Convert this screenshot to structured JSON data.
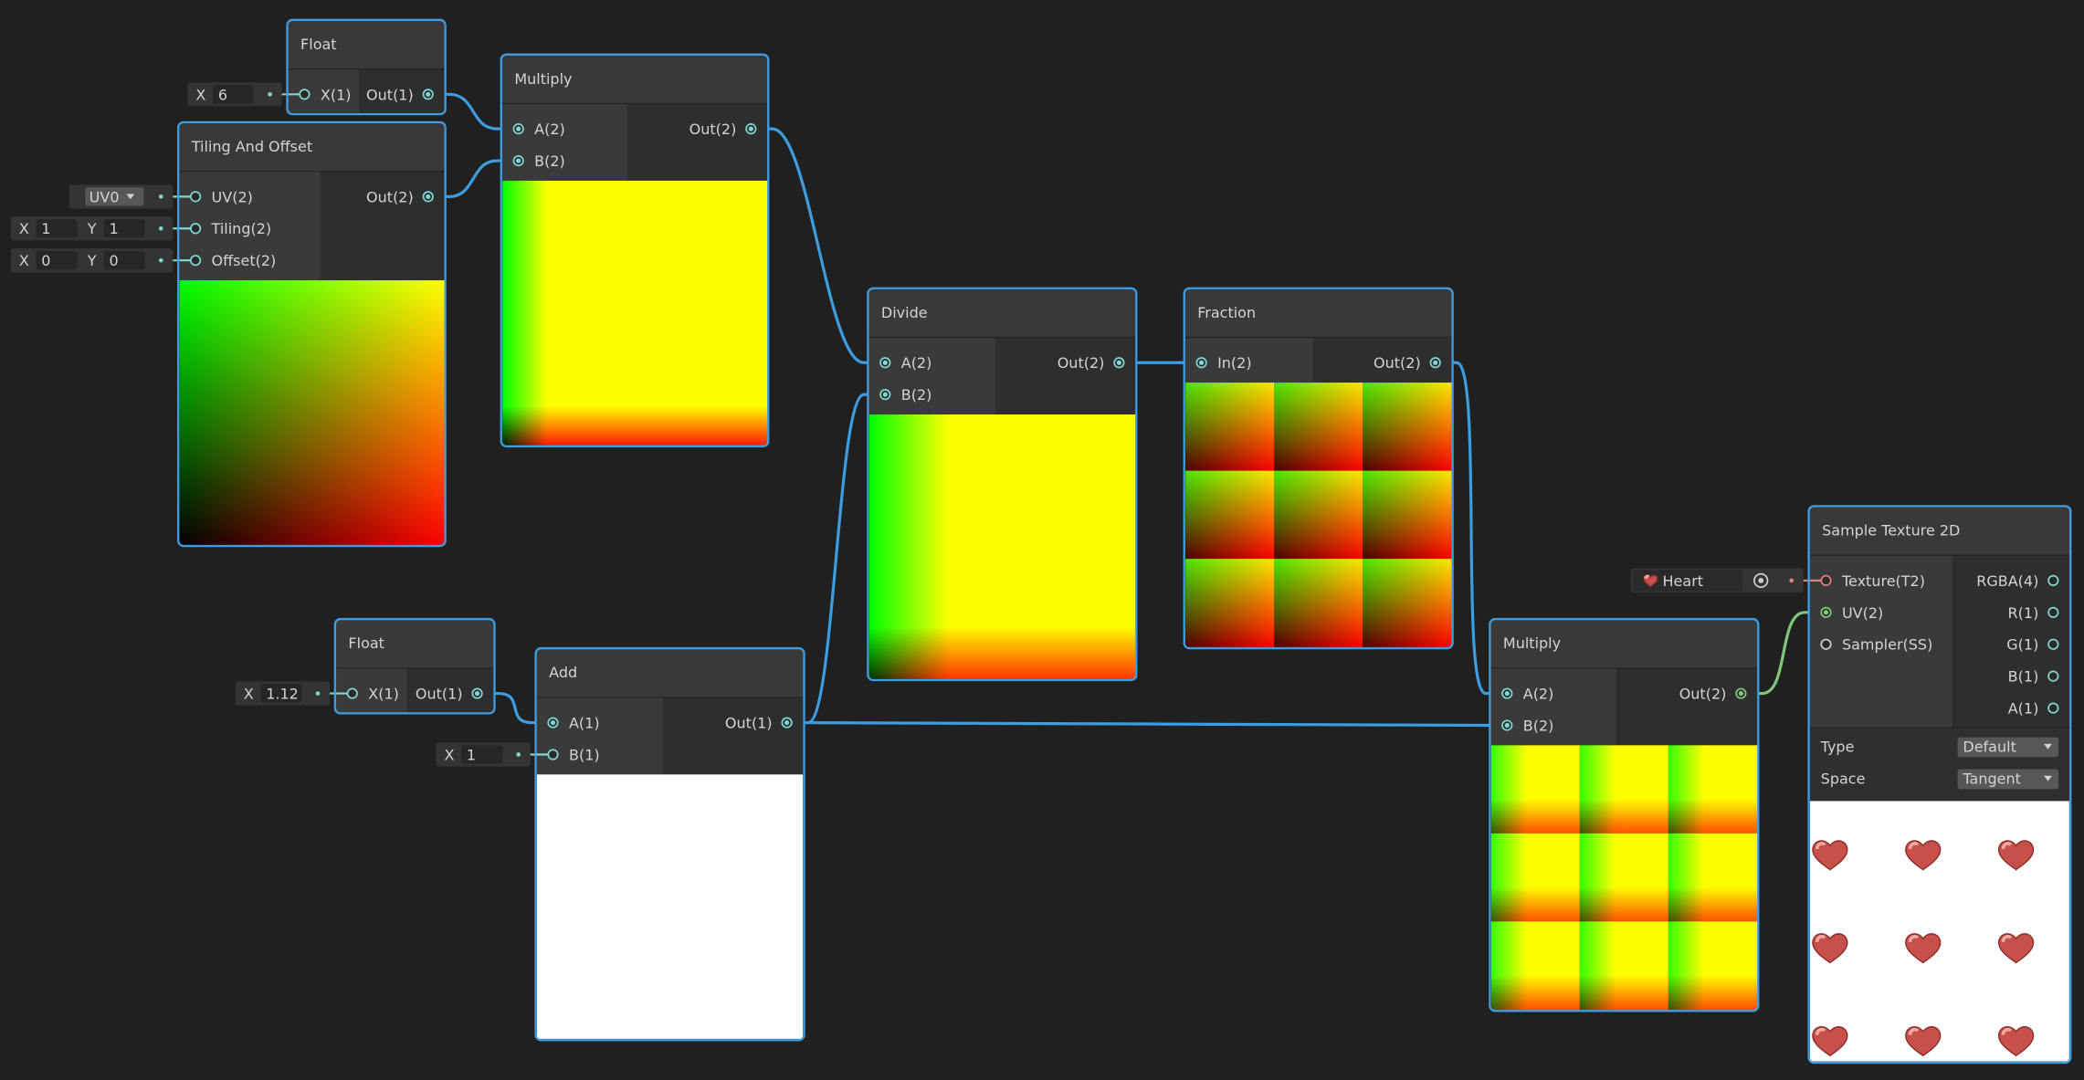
{
  "nodes": [
    {
      "title": "Float",
      "inputs": [
        {
          "label": "X(1)",
          "fields": [
            {
              "axis": "X",
              "value": "6"
            }
          ]
        }
      ],
      "outputs": [
        "Out(1)"
      ]
    },
    {
      "title": "Multiply",
      "inputs": [
        {
          "label": "A(2)"
        },
        {
          "label": "B(2)"
        }
      ],
      "outputs": [
        "Out(2)"
      ]
    },
    {
      "title": "Tiling And Offset",
      "inputs": [
        {
          "label": "UV(2)",
          "dropdown": "UV0"
        },
        {
          "label": "Tiling(2)",
          "fields": [
            {
              "axis": "X",
              "value": "1"
            },
            {
              "axis": "Y",
              "value": "1"
            }
          ]
        },
        {
          "label": "Offset(2)",
          "fields": [
            {
              "axis": "X",
              "value": "0"
            },
            {
              "axis": "Y",
              "value": "0"
            }
          ]
        }
      ],
      "outputs": [
        "Out(2)"
      ]
    },
    {
      "title": "Divide",
      "inputs": [
        {
          "label": "A(2)"
        },
        {
          "label": "B(2)"
        }
      ],
      "outputs": [
        "Out(2)"
      ]
    },
    {
      "title": "Fraction",
      "inputs": [
        {
          "label": "In(2)"
        }
      ],
      "outputs": [
        "Out(2)"
      ]
    },
    {
      "title": "Float",
      "inputs": [
        {
          "label": "X(1)",
          "fields": [
            {
              "axis": "X",
              "value": "1.12"
            }
          ]
        }
      ],
      "outputs": [
        "Out(1)"
      ]
    },
    {
      "title": "Add",
      "inputs": [
        {
          "label": "A(1)"
        },
        {
          "label": "B(1)",
          "fields": [
            {
              "axis": "X",
              "value": "1"
            }
          ]
        }
      ],
      "outputs": [
        "Out(1)"
      ]
    },
    {
      "title": "Multiply",
      "inputs": [
        {
          "label": "A(2)"
        },
        {
          "label": "B(2)"
        }
      ],
      "outputs": [
        "Out(2)"
      ]
    },
    {
      "title": "Sample Texture 2D",
      "inputs": [
        {
          "label": "Texture(T2)",
          "asset": "Heart"
        },
        {
          "label": "UV(2)"
        },
        {
          "label": "Sampler(SS)"
        }
      ],
      "outputs": [
        "RGBA(4)",
        "R(1)",
        "G(1)",
        "B(1)",
        "A(1)"
      ],
      "settings": [
        {
          "label": "Type",
          "value": "Default"
        },
        {
          "label": "Space",
          "value": "Tangent"
        }
      ]
    }
  ]
}
